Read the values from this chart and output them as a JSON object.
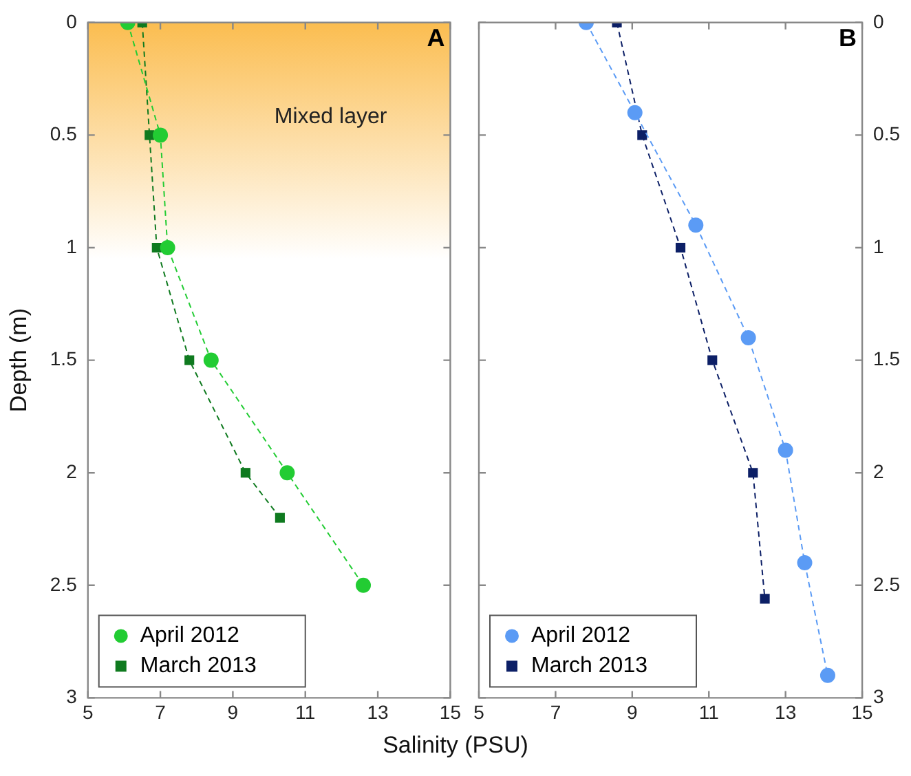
{
  "chart_data": [
    {
      "type": "line",
      "ylabel": "Depth (m)",
      "xlabel": "Salinity (PSU)",
      "annotations": [
        "A"
      ],
      "xlim": [
        5,
        15
      ],
      "xticks": [
        5,
        7,
        9,
        11,
        13,
        15
      ],
      "ylim": [
        3,
        0
      ],
      "yticks": [
        0,
        0.5,
        1,
        1.5,
        2,
        2.5,
        3
      ],
      "grid": false,
      "legend": "bottom left",
      "line_style": "dashed",
      "bands": [
        {
          "axis": "y",
          "from": 0,
          "to": 1.05,
          "label": "Mixed layer",
          "color": "#fbbd50"
        }
      ],
      "series": [
        {
          "name": "April 2012",
          "color": "#22cc33",
          "marker": "circle",
          "x": [
            6.1,
            7.0,
            7.2,
            8.4,
            10.5,
            12.6
          ],
          "values": [
            0,
            0.5,
            1,
            1.5,
            2,
            2.5
          ]
        },
        {
          "name": "March 2013",
          "color": "#0f7a1f",
          "marker": "square",
          "x": [
            6.5,
            6.7,
            6.9,
            7.8,
            9.35,
            10.3
          ],
          "values": [
            0,
            0.5,
            1,
            1.5,
            2,
            2.2
          ]
        }
      ]
    },
    {
      "type": "line",
      "annotations": [
        "B"
      ],
      "xlim": [
        5,
        15
      ],
      "xticks": [
        5,
        7,
        9,
        11,
        13,
        15
      ],
      "ylim": [
        3,
        0
      ],
      "yticks": [
        0,
        0.5,
        1,
        1.5,
        2,
        2.5,
        3
      ],
      "grid": false,
      "legend": "bottom left",
      "line_style": "dashed",
      "series": [
        {
          "name": "April 2012",
          "color": "#5b9bf5",
          "marker": "circle",
          "x": [
            7.8,
            9.07,
            10.66,
            12.03,
            13.0,
            13.5,
            14.1
          ],
          "values": [
            0,
            0.4,
            0.9,
            1.4,
            1.9,
            2.4,
            2.9
          ]
        },
        {
          "name": "March 2013",
          "color": "#0c1f66",
          "marker": "square",
          "x": [
            8.6,
            9.26,
            10.26,
            11.09,
            12.15,
            12.46
          ],
          "values": [
            0,
            0.5,
            1,
            1.5,
            2,
            2.56
          ]
        }
      ]
    }
  ]
}
